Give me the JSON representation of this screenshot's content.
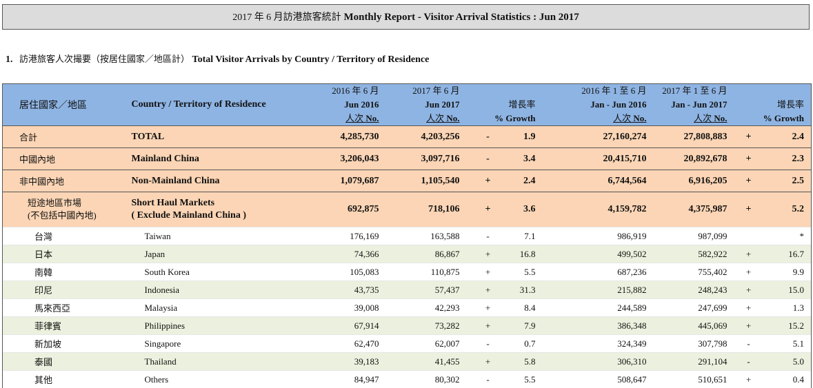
{
  "title": {
    "zh": "2017 年 6 月訪港旅客統計",
    "en": "Monthly Report - Visitor Arrival Statistics : Jun 2017"
  },
  "section": {
    "number": "1.",
    "zh": "訪港旅客人次撮要（按居住國家／地區計）",
    "en": "Total Visitor Arrivals by Country / Territory of Residence"
  },
  "header": {
    "col_zh": "居住國家／地區",
    "col_en": "Country / Territory of Residence",
    "jun2016_zh": "2016 年 6 月",
    "jun2016_en": "Jun 2016",
    "jun2017_zh": "2017 年 6 月",
    "jun2017_en": "Jun 2017",
    "unit_zh": "人次",
    "unit_en": "No.",
    "growth_zh": "增長率",
    "growth_en": "% Growth",
    "ytd2016_zh": "2016 年 1 至 6 月",
    "ytd2016_en": "Jan - Jun 2016",
    "ytd2017_zh": "2017 年 1 至 6 月",
    "ytd2017_en": "Jan - Jun 2017"
  },
  "summary_rows": [
    {
      "zh": "合計",
      "en": "TOTAL",
      "jun2016": "4,285,730",
      "jun2017": "4,203,256",
      "sign1": "-",
      "growth1": "1.9",
      "ytd2016": "27,160,274",
      "ytd2017": "27,808,883",
      "sign2": "+",
      "growth2": "2.4"
    },
    {
      "zh": "中國內地",
      "en": "Mainland China",
      "jun2016": "3,206,043",
      "jun2017": "3,097,716",
      "sign1": "-",
      "growth1": "3.4",
      "ytd2016": "20,415,710",
      "ytd2017": "20,892,678",
      "sign2": "+",
      "growth2": "2.3"
    },
    {
      "zh": "非中國內地",
      "en": "Non-Mainland China",
      "jun2016": "1,079,687",
      "jun2017": "1,105,540",
      "sign1": "+",
      "growth1": "2.4",
      "ytd2016": "6,744,564",
      "ytd2017": "6,916,205",
      "sign2": "+",
      "growth2": "2.5"
    }
  ],
  "short_haul": {
    "zh1": "短途地區市場",
    "zh2": "(不包括中國內地)",
    "en1": "Short Haul Markets",
    "en2": "( Exclude Mainland China )",
    "jun2016": "692,875",
    "jun2017": "718,106",
    "sign1": "+",
    "growth1": "3.6",
    "ytd2016": "4,159,782",
    "ytd2017": "4,375,987",
    "sign2": "+",
    "growth2": "5.2"
  },
  "rows": [
    {
      "zh": "台灣",
      "en": "Taiwan",
      "jun2016": "176,169",
      "jun2017": "163,588",
      "sign1": "-",
      "growth1": "7.1",
      "ytd2016": "986,919",
      "ytd2017": "987,099",
      "sign2": "",
      "growth2": "*"
    },
    {
      "zh": "日本",
      "en": "Japan",
      "jun2016": "74,366",
      "jun2017": "86,867",
      "sign1": "+",
      "growth1": "16.8",
      "ytd2016": "499,502",
      "ytd2017": "582,922",
      "sign2": "+",
      "growth2": "16.7"
    },
    {
      "zh": "南韓",
      "en": "South Korea",
      "jun2016": "105,083",
      "jun2017": "110,875",
      "sign1": "+",
      "growth1": "5.5",
      "ytd2016": "687,236",
      "ytd2017": "755,402",
      "sign2": "+",
      "growth2": "9.9"
    },
    {
      "zh": "印尼",
      "en": "Indonesia",
      "jun2016": "43,735",
      "jun2017": "57,437",
      "sign1": "+",
      "growth1": "31.3",
      "ytd2016": "215,882",
      "ytd2017": "248,243",
      "sign2": "+",
      "growth2": "15.0"
    },
    {
      "zh": "馬來西亞",
      "en": "Malaysia",
      "jun2016": "39,008",
      "jun2017": "42,293",
      "sign1": "+",
      "growth1": "8.4",
      "ytd2016": "244,589",
      "ytd2017": "247,699",
      "sign2": "+",
      "growth2": "1.3"
    },
    {
      "zh": "菲律賓",
      "en": "Philippines",
      "jun2016": "67,914",
      "jun2017": "73,282",
      "sign1": "+",
      "growth1": "7.9",
      "ytd2016": "386,348",
      "ytd2017": "445,069",
      "sign2": "+",
      "growth2": "15.2"
    },
    {
      "zh": "新加坡",
      "en": "Singapore",
      "jun2016": "62,470",
      "jun2017": "62,007",
      "sign1": "-",
      "growth1": "0.7",
      "ytd2016": "324,349",
      "ytd2017": "307,798",
      "sign2": "-",
      "growth2": "5.1"
    },
    {
      "zh": "泰國",
      "en": "Thailand",
      "jun2016": "39,183",
      "jun2017": "41,455",
      "sign1": "+",
      "growth1": "5.8",
      "ytd2016": "306,310",
      "ytd2017": "291,104",
      "sign2": "-",
      "growth2": "5.0"
    },
    {
      "zh": "其他",
      "en": "Others",
      "jun2016": "84,947",
      "jun2017": "80,302",
      "sign1": "-",
      "growth1": "5.5",
      "ytd2016": "508,647",
      "ytd2017": "510,651",
      "sign2": "+",
      "growth2": "0.4"
    }
  ],
  "colors": {
    "header_bg": "#8eb4e3",
    "summary_bg": "#fbd5b5",
    "alt_row_bg": "#ebf1de",
    "title_bg": "#dcdcdc"
  }
}
